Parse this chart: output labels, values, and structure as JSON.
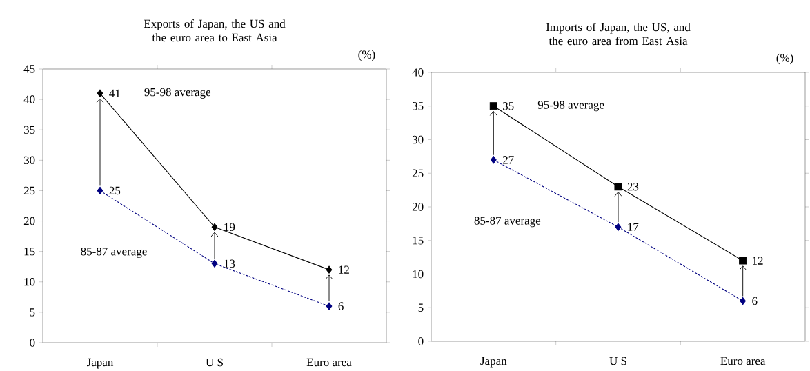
{
  "chart_data": [
    {
      "type": "line",
      "title": "Exports of Japan, the US and the euro area to East Asia",
      "ylabel": "(%)",
      "categories": [
        "Japan",
        "U S",
        "Euro area"
      ],
      "series": [
        {
          "name": "95-98 average",
          "color": "#000000",
          "marker": "diamond",
          "line_style": "solid",
          "values": [
            41,
            19,
            12
          ]
        },
        {
          "name": "85-87 average",
          "color": "#000080",
          "marker": "diamond",
          "line_style": "dashed",
          "values": [
            25,
            13,
            6
          ]
        }
      ],
      "ylim": [
        0,
        45
      ],
      "yticks": [
        0,
        5,
        10,
        15,
        20,
        25,
        30,
        35,
        40,
        45
      ],
      "data_labels": true
    },
    {
      "type": "line",
      "title": "Imports of Japan, the US, and the euro area from East Asia",
      "ylabel": "(%)",
      "categories": [
        "Japan",
        "U S",
        "Euro area"
      ],
      "series": [
        {
          "name": "95-98 average",
          "color": "#000000",
          "marker": "square",
          "line_style": "solid",
          "values": [
            35,
            23,
            12
          ]
        },
        {
          "name": "85-87 average",
          "color": "#000080",
          "marker": "diamond",
          "line_style": "dashed",
          "values": [
            27,
            17,
            6
          ]
        }
      ],
      "ylim": [
        0,
        40
      ],
      "yticks": [
        0,
        5,
        10,
        15,
        20,
        25,
        30,
        35,
        40
      ],
      "data_labels": true
    }
  ]
}
